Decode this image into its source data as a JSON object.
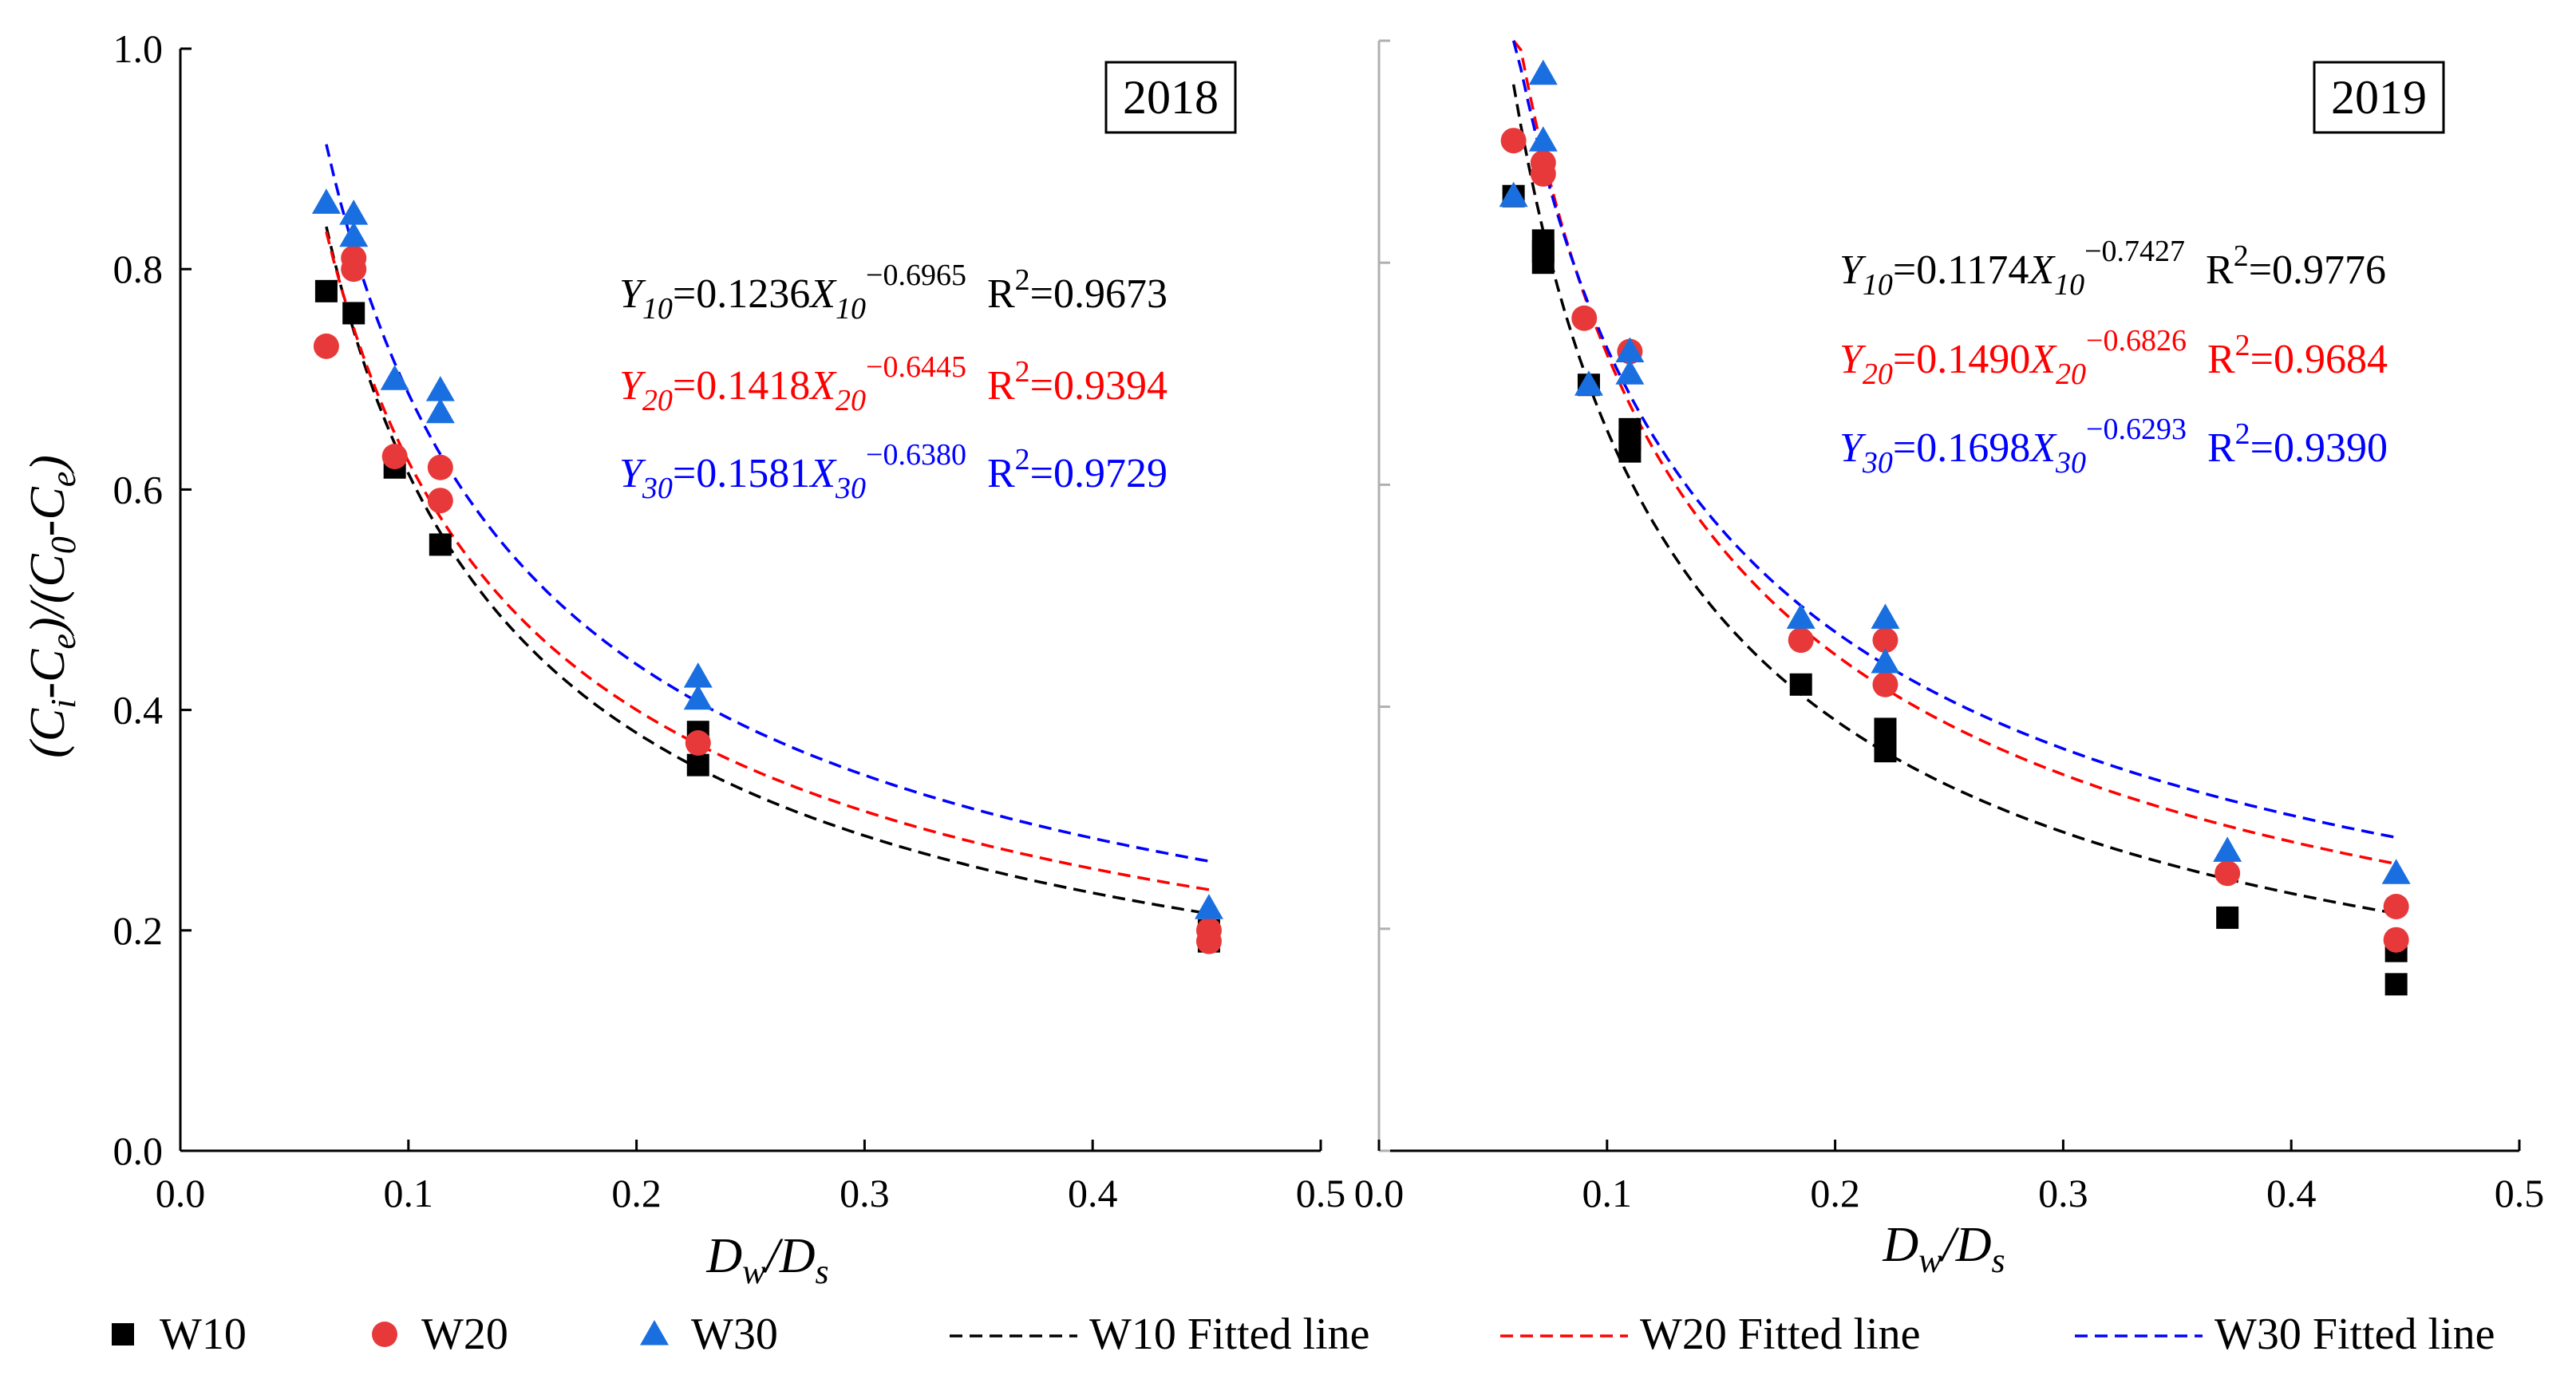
{
  "chart_data": [
    {
      "type": "scatter",
      "panel_label": "2018",
      "xlabel": {
        "main": "D",
        "sub1": "w",
        "sep": "/D",
        "sub2": "s"
      },
      "ylabel": "(C_i-C_e)/(C_0-C_e)",
      "xlim": [
        0,
        0.5
      ],
      "ylim": [
        0,
        1.0
      ],
      "xticks": [
        "0.0",
        "0.1",
        "0.2",
        "0.3",
        "0.4",
        "0.5"
      ],
      "yticks": [
        "0.0",
        "0.2",
        "0.4",
        "0.6",
        "0.8",
        "1.0"
      ],
      "series": [
        {
          "name": "W10",
          "color": "#000000",
          "marker": "square",
          "x": [
            0.064,
            0.076,
            0.094,
            0.114,
            0.227,
            0.227,
            0.451,
            0.451
          ],
          "y": [
            0.78,
            0.76,
            0.62,
            0.55,
            0.38,
            0.35,
            0.2,
            0.19
          ]
        },
        {
          "name": "W20",
          "color": "#e8393a",
          "marker": "circle",
          "x": [
            0.064,
            0.076,
            0.076,
            0.094,
            0.114,
            0.114,
            0.227,
            0.451,
            0.451
          ],
          "y": [
            0.73,
            0.8,
            0.81,
            0.63,
            0.62,
            0.59,
            0.37,
            0.2,
            0.19
          ]
        },
        {
          "name": "W30",
          "color": "#1a6fe0",
          "marker": "triangle",
          "x": [
            0.064,
            0.076,
            0.076,
            0.094,
            0.114,
            0.114,
            0.227,
            0.227,
            0.451
          ],
          "y": [
            0.86,
            0.85,
            0.83,
            0.7,
            0.69,
            0.67,
            0.43,
            0.41,
            0.22
          ]
        }
      ],
      "fits": [
        {
          "name": "W10 Fitted line",
          "color": "#000000",
          "a": 0.1236,
          "b": -0.6965,
          "xmin": 0.064,
          "xmax": 0.451,
          "eq_y": "Y",
          "eq_sub": "10",
          "eq_mid": "=0.1236",
          "eq_x": "X",
          "eq_exp": "−0.6965",
          "r2_lead": "R",
          "r2_sup": "2",
          "r2_val": "=0.9673"
        },
        {
          "name": "W20 Fitted line",
          "color": "#ff0000",
          "a": 0.1418,
          "b": -0.6445,
          "xmin": 0.064,
          "xmax": 0.451,
          "eq_y": "Y",
          "eq_sub": "20",
          "eq_mid": "=0.1418",
          "eq_x": "X",
          "eq_exp": "−0.6445",
          "r2_lead": "R",
          "r2_sup": "2",
          "r2_val": "=0.9394"
        },
        {
          "name": "W30 Fitted line",
          "color": "#0000ff",
          "a": 0.1581,
          "b": -0.638,
          "xmin": 0.064,
          "xmax": 0.451,
          "eq_y": "Y",
          "eq_sub": "30",
          "eq_mid": "=0.1581",
          "eq_x": "X",
          "eq_exp": "−0.6380",
          "r2_lead": "R",
          "r2_sup": "2",
          "r2_val": "=0.9729"
        }
      ]
    },
    {
      "type": "scatter",
      "panel_label": "2019",
      "xlabel": {
        "main": "D",
        "sub1": "w",
        "sep": "/D",
        "sub2": "s"
      },
      "xlim": [
        0,
        0.5
      ],
      "ylim": [
        0,
        1.0
      ],
      "xticks": [
        "0.0",
        "0.1",
        "0.2",
        "0.3",
        "0.4",
        "0.5"
      ],
      "yticks": [],
      "series": [
        {
          "name": "W10",
          "color": "#000000",
          "marker": "square",
          "x": [
            0.059,
            0.072,
            0.072,
            0.072,
            0.092,
            0.11,
            0.11,
            0.11,
            0.185,
            0.222,
            0.222,
            0.222,
            0.372,
            0.446,
            0.446
          ],
          "y": [
            0.86,
            0.82,
            0.81,
            0.8,
            0.69,
            0.65,
            0.64,
            0.63,
            0.42,
            0.38,
            0.37,
            0.36,
            0.21,
            0.18,
            0.15
          ]
        },
        {
          "name": "W20",
          "color": "#e8393a",
          "marker": "circle",
          "x": [
            0.059,
            0.072,
            0.072,
            0.09,
            0.11,
            0.185,
            0.222,
            0.222,
            0.372,
            0.446,
            0.446
          ],
          "y": [
            0.91,
            0.89,
            0.88,
            0.75,
            0.72,
            0.46,
            0.46,
            0.42,
            0.25,
            0.22,
            0.19
          ]
        },
        {
          "name": "W30",
          "color": "#1a6fe0",
          "marker": "triangle",
          "x": [
            0.059,
            0.072,
            0.072,
            0.092,
            0.11,
            0.11,
            0.185,
            0.222,
            0.222,
            0.372,
            0.446
          ],
          "y": [
            0.86,
            0.97,
            0.91,
            0.69,
            0.72,
            0.7,
            0.48,
            0.48,
            0.44,
            0.27,
            0.25
          ]
        }
      ],
      "fits": [
        {
          "name": "W10 Fitted line",
          "color": "#000000",
          "a": 0.1174,
          "b": -0.7427,
          "xmin": 0.059,
          "xmax": 0.446,
          "eq_y": "Y",
          "eq_sub": "10",
          "eq_mid": "=0.1174",
          "eq_x": "X",
          "eq_exp": "−0.7427",
          "r2_lead": "R",
          "r2_sup": "2",
          "r2_val": "=0.9776"
        },
        {
          "name": "W20 Fitted line",
          "color": "#ff0000",
          "a": 0.149,
          "b": -0.6826,
          "xmin": 0.059,
          "xmax": 0.446,
          "eq_y": "Y",
          "eq_sub": "20",
          "eq_mid": "=0.1490",
          "eq_x": "X",
          "eq_exp": "−0.6826",
          "r2_lead": "R",
          "r2_sup": "2",
          "r2_val": "=0.9684"
        },
        {
          "name": "W30 Fitted line",
          "color": "#0000ff",
          "a": 0.1698,
          "b": -0.6293,
          "xmin": 0.059,
          "xmax": 0.446,
          "eq_y": "Y",
          "eq_sub": "30",
          "eq_mid": "=0.1698",
          "eq_x": "X",
          "eq_exp": "−0.6293",
          "r2_lead": "R",
          "r2_sup": "2",
          "r2_val": "=0.9390"
        }
      ]
    }
  ],
  "legend": {
    "items": [
      {
        "label": "W10",
        "kind": "square",
        "color": "#000000"
      },
      {
        "label": "W20",
        "kind": "circle",
        "color": "#e8393a"
      },
      {
        "label": "W30",
        "kind": "triangle",
        "color": "#1a6fe0"
      },
      {
        "label": "W10 Fitted line",
        "kind": "dash",
        "color": "#000000"
      },
      {
        "label": "W20 Fitted line",
        "kind": "dash",
        "color": "#ff0000"
      },
      {
        "label": "W30 Fitted line",
        "kind": "dash",
        "color": "#0000ff"
      }
    ]
  }
}
